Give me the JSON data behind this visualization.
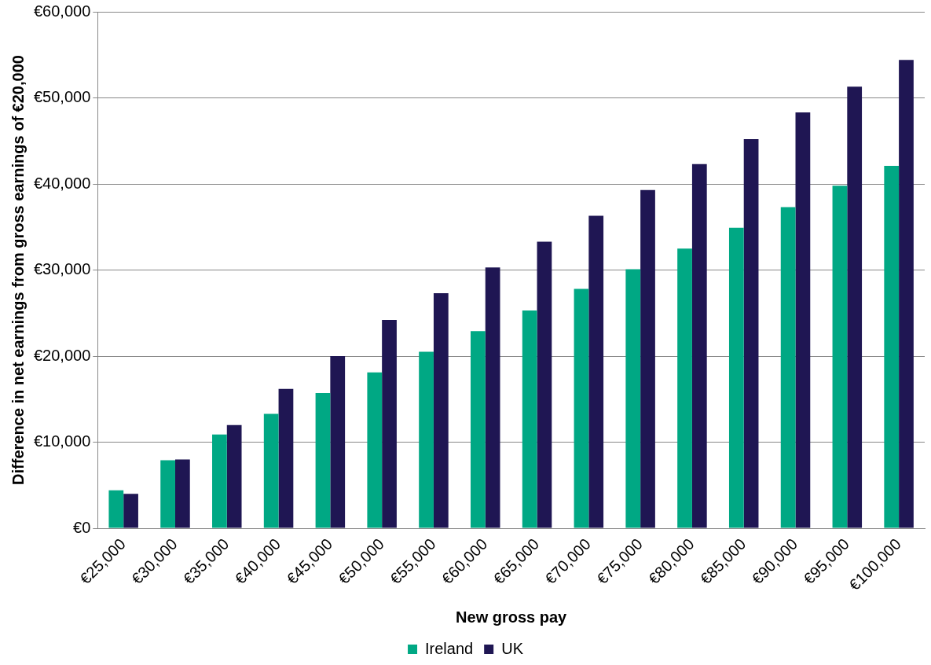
{
  "chart_data": {
    "type": "bar",
    "xlabel": "New gross pay",
    "ylabel": "Difference in net earnings from gross earnings of €20,000",
    "categories": [
      "€25,000",
      "€30,000",
      "€35,000",
      "€40,000",
      "€45,000",
      "€50,000",
      "€55,000",
      "€60,000",
      "€65,000",
      "€70,000",
      "€75,000",
      "€80,000",
      "€85,000",
      "€90,000",
      "€95,000",
      "€100,000"
    ],
    "series": [
      {
        "name": "Ireland",
        "color": "#00a884",
        "values": [
          4400,
          7900,
          10900,
          13300,
          15700,
          18100,
          20500,
          22900,
          25300,
          27800,
          30100,
          32500,
          34900,
          37300,
          39800,
          42100
        ]
      },
      {
        "name": "UK",
        "color": "#1f1653",
        "values": [
          4000,
          8000,
          12000,
          16200,
          20000,
          24200,
          27300,
          30300,
          33300,
          36300,
          39300,
          42300,
          45200,
          48300,
          51300,
          54400
        ]
      }
    ],
    "ylim": [
      0,
      60000
    ],
    "yticks": [
      {
        "value": 0,
        "label": "€0"
      },
      {
        "value": 10000,
        "label": "€10,000"
      },
      {
        "value": 20000,
        "label": "€20,000"
      },
      {
        "value": 30000,
        "label": "€30,000"
      },
      {
        "value": 40000,
        "label": "€40,000"
      },
      {
        "value": 50000,
        "label": "€50,000"
      },
      {
        "value": 60000,
        "label": "€60,000"
      }
    ],
    "grid": "y",
    "legend": "bottom"
  }
}
